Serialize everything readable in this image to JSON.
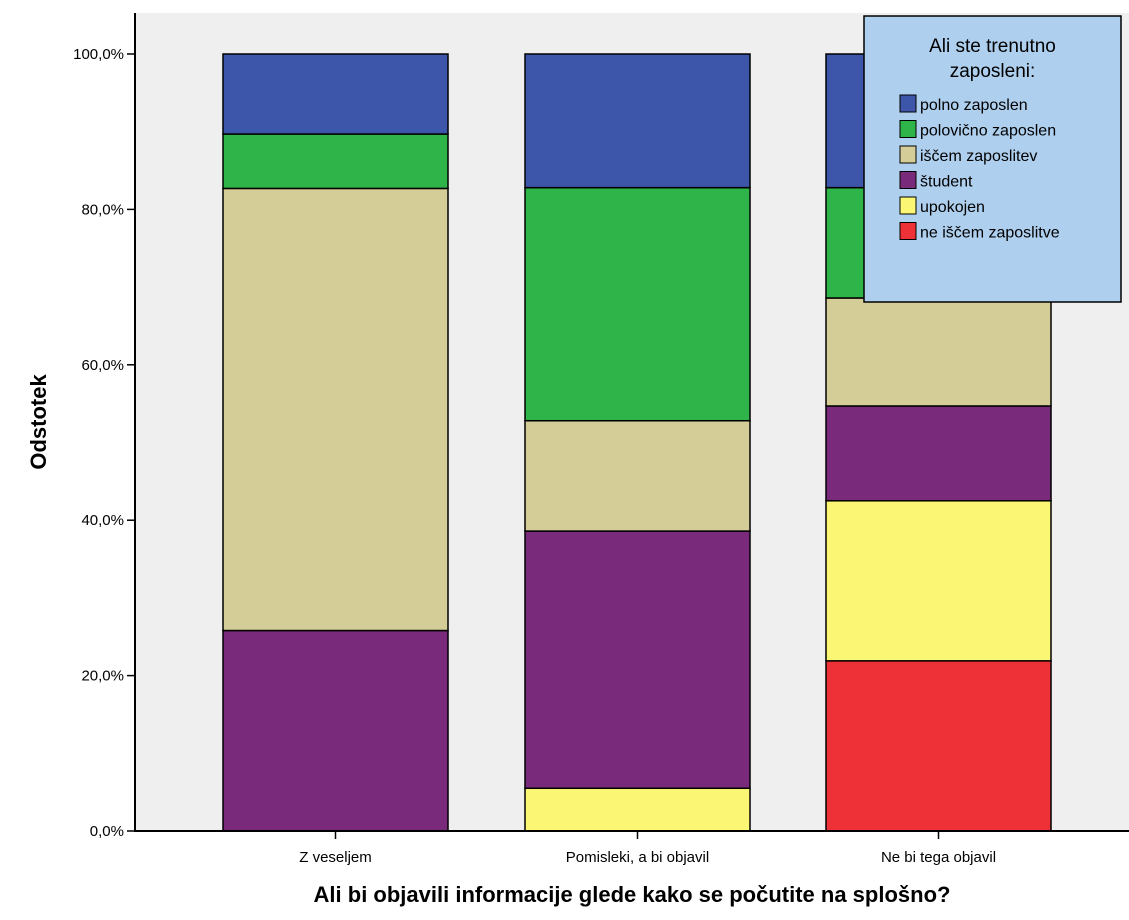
{
  "chart_data": {
    "type": "bar",
    "stacked": true,
    "title": "",
    "xlabel": "Ali bi objavili informacije glede kako se počutite na splošno?",
    "ylabel": "Odstotek",
    "ylim": [
      0,
      100
    ],
    "yticks": [
      "0,0%",
      "20,0%",
      "40,0%",
      "60,0%",
      "80,0%",
      "100,0%"
    ],
    "ytick_values": [
      0,
      20,
      40,
      60,
      80,
      100
    ],
    "grid": false,
    "categories": [
      "Z veseljem",
      "Pomisleki, a bi objavil",
      "Ne bi tega objavil"
    ],
    "legend": {
      "title": "Ali ste trenutno zaposleni:",
      "title_lines": [
        "Ali ste trenutno",
        "zaposleni:"
      ],
      "placement": "top-right"
    },
    "series": [
      {
        "name": "ne iščem zaposlitve",
        "color": "#ee3137",
        "values": [
          0.0,
          0.0,
          21.9
        ]
      },
      {
        "name": "upokojen",
        "color": "#fbf674",
        "values": [
          0.0,
          5.5,
          20.6
        ]
      },
      {
        "name": "študent",
        "color": "#7a2a7a",
        "values": [
          25.8,
          33.1,
          12.2
        ]
      },
      {
        "name": "iščem zaposlitev",
        "color": "#d4cd98",
        "values": [
          56.9,
          14.2,
          13.9
        ]
      },
      {
        "name": "polovično zaposlen",
        "color": "#2fb44a",
        "values": [
          7.0,
          30.0,
          14.2
        ]
      },
      {
        "name": "polno zaposlen",
        "color": "#3d56a9",
        "values": [
          10.3,
          17.2,
          17.2
        ]
      }
    ],
    "legend_order": [
      "polno zaposlen",
      "polovično zaposlen",
      "iščem zaposlitev",
      "študent",
      "upokojen",
      "ne iščem zaposlitve"
    ],
    "colors": {
      "plot_background": "#efefef",
      "legend_background": "#aecfee",
      "outline": "#000000"
    }
  }
}
